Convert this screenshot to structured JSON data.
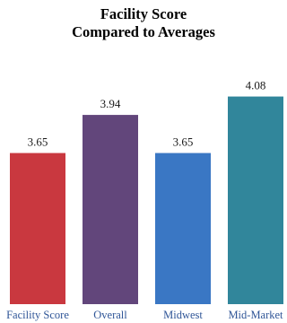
{
  "chart_data": {
    "type": "bar",
    "title_line1": "Facility Score",
    "title_line2": "Compared to Averages",
    "xlabel": "",
    "ylabel": "",
    "categories": [
      "Facility Score",
      "Overall",
      "Midwest",
      "Mid-Market"
    ],
    "values": [
      3.65,
      3.94,
      3.65,
      4.08
    ],
    "value_labels": [
      "3.65",
      "3.94",
      "3.65",
      "4.08"
    ],
    "colors": [
      "#c9383f",
      "#62467b",
      "#3a77c4",
      "#31869b"
    ],
    "ylim": [
      2.5,
      4.2
    ],
    "grid": false,
    "legend": "none"
  }
}
